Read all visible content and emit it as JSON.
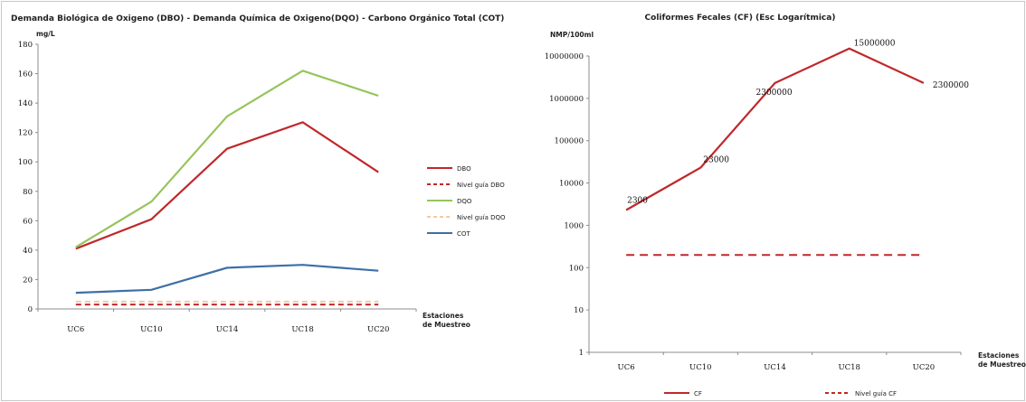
{
  "colors": {
    "dbo": "#c0282b",
    "nivel_dbo": "#c0282b",
    "dqo": "#96c45a",
    "nivel_dqo": "#f2c9a6",
    "cot": "#3e6fa8",
    "cf": "#c0282b",
    "nivel_cf": "#c0282b"
  },
  "chart_data": [
    {
      "type": "line",
      "title": "Demanda Biológica de Oxigeno (DBO) - Demanda Química de Oxigeno(DQO) - Carbono Orgánico Total (COT)",
      "ylabel": "mg/L",
      "xlabel_line1": "Estaciones",
      "xlabel_line2": "de Muestreo",
      "categories": [
        "UC6",
        "UC10",
        "UC14",
        "UC18",
        "UC20"
      ],
      "ylim": [
        0,
        180
      ],
      "yticks": [
        0,
        20,
        40,
        60,
        80,
        100,
        120,
        140,
        160,
        180
      ],
      "ytick_labels": [
        "0",
        "20",
        "40",
        "60",
        "80",
        "100",
        "120",
        "140",
        "160",
        "180"
      ],
      "grid": false,
      "legend_position": "right",
      "series": [
        {
          "name": "DBO",
          "values": [
            41,
            61,
            109,
            127,
            93
          ],
          "style": "solid"
        },
        {
          "name": "Nivel guía DBO",
          "values": [
            3,
            3,
            3,
            3,
            3
          ],
          "style": "dashed"
        },
        {
          "name": "DQO",
          "values": [
            42,
            73,
            131,
            162,
            145
          ],
          "style": "solid"
        },
        {
          "name": "Nivel guía DQO",
          "values": [
            5,
            5,
            5,
            5,
            5
          ],
          "style": "dashed"
        },
        {
          "name": "COT",
          "values": [
            11,
            13,
            28,
            30,
            26
          ],
          "style": "solid"
        }
      ]
    },
    {
      "type": "line",
      "title": "Coliformes Fecales (CF) (Esc Logarítmica)",
      "ylabel": "NMP/100ml",
      "xlabel_line1": "Estaciones",
      "xlabel_line2": "de Muestreo",
      "yscale": "log",
      "categories": [
        "UC6",
        "UC10",
        "UC14",
        "UC18",
        "UC20"
      ],
      "ylim": [
        1,
        10000000
      ],
      "yticks": [
        1,
        10,
        100,
        1000,
        10000,
        100000,
        1000000,
        10000000
      ],
      "ytick_labels": [
        "1",
        "10",
        "100",
        "1000",
        "10000",
        "100000",
        "1000000",
        "10000000"
      ],
      "grid": false,
      "legend_position": "bottom",
      "series": [
        {
          "name": "CF",
          "values": [
            2300,
            23000,
            2300000,
            15000000,
            2300000
          ],
          "style": "solid",
          "data_labels": [
            "2300",
            "23000",
            "2300000",
            "15000000",
            "2300000"
          ]
        },
        {
          "name": "Nivel guía CF",
          "values": [
            200,
            200,
            200,
            200,
            200
          ],
          "style": "dashed"
        }
      ]
    }
  ]
}
